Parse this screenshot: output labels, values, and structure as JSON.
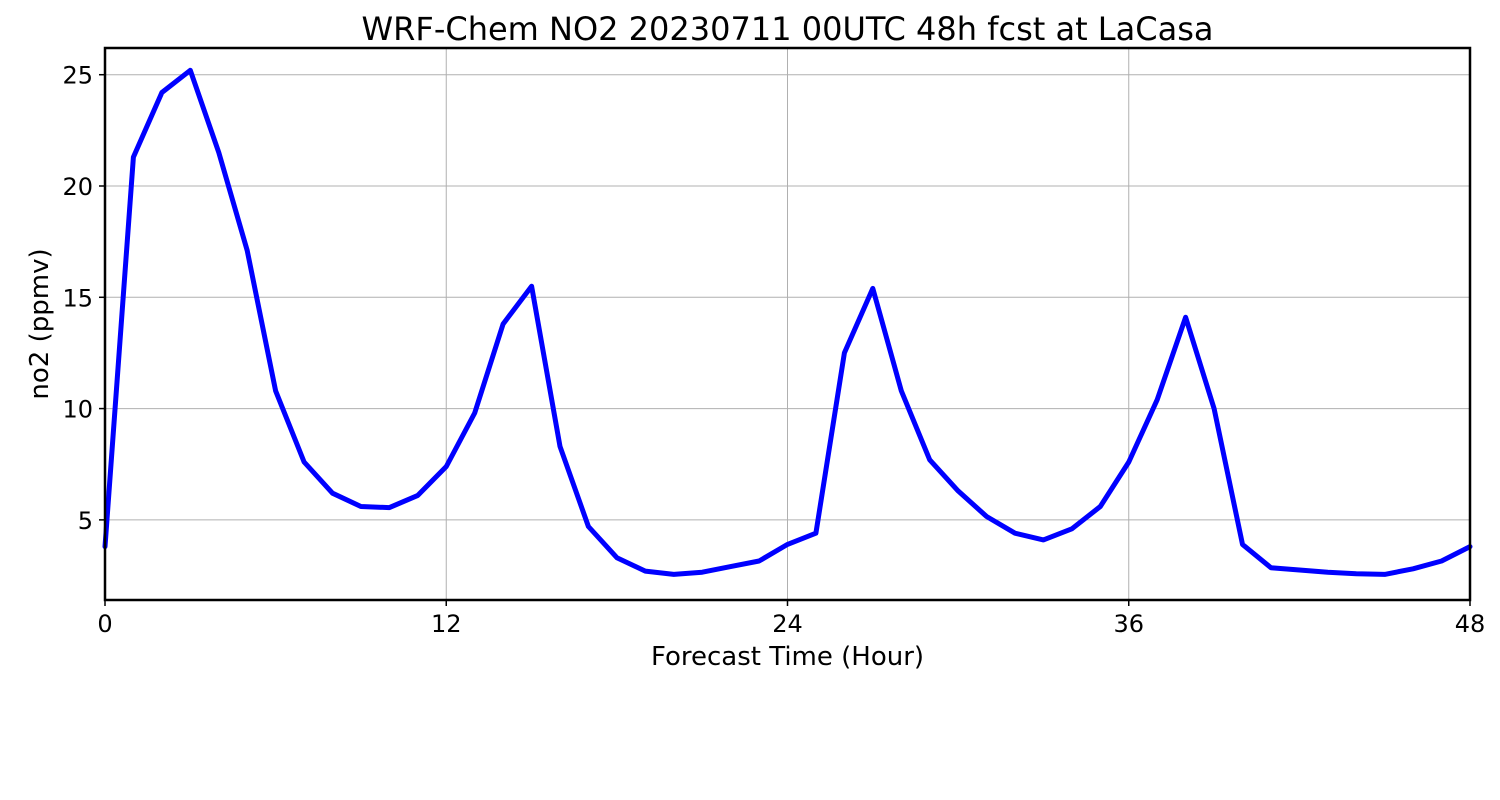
{
  "chart_data": {
    "type": "line",
    "title": "WRF-Chem NO2  20230711 00UTC 48h fcst at LaCasa",
    "xlabel": "Forecast Time (Hour)",
    "ylabel": "no2  (ppmv)",
    "xlim": [
      0,
      48
    ],
    "ylim": [
      1.4,
      26.2
    ],
    "xticks": [
      0,
      12,
      24,
      36,
      48
    ],
    "yticks": [
      5,
      10,
      15,
      20,
      25
    ],
    "grid": true,
    "line_color": "#0000ff",
    "series": [
      {
        "x": [
          0,
          1,
          2,
          3,
          4,
          5,
          6,
          7,
          8,
          9,
          10,
          11,
          12,
          13,
          14,
          15,
          16,
          17,
          18,
          19,
          20,
          21,
          22,
          23,
          24,
          25,
          26,
          27,
          28,
          29,
          30,
          31,
          32,
          33,
          34,
          35,
          36,
          37,
          38,
          39,
          40,
          41,
          42,
          43,
          44,
          45,
          46,
          47,
          48
        ],
        "values": [
          3.8,
          21.3,
          24.2,
          25.2,
          21.5,
          17.1,
          10.8,
          7.6,
          6.2,
          5.6,
          5.55,
          6.1,
          7.4,
          9.8,
          13.8,
          15.5,
          8.3,
          4.7,
          3.3,
          2.7,
          2.55,
          2.65,
          2.9,
          3.15,
          3.9,
          4.4,
          12.5,
          15.4,
          10.8,
          7.7,
          6.3,
          5.15,
          4.4,
          4.1,
          4.6,
          5.6,
          7.6,
          10.4,
          14.1,
          10.0,
          3.9,
          2.85,
          2.75,
          2.65,
          2.58,
          2.55,
          2.8,
          3.15,
          3.8
        ]
      }
    ]
  }
}
